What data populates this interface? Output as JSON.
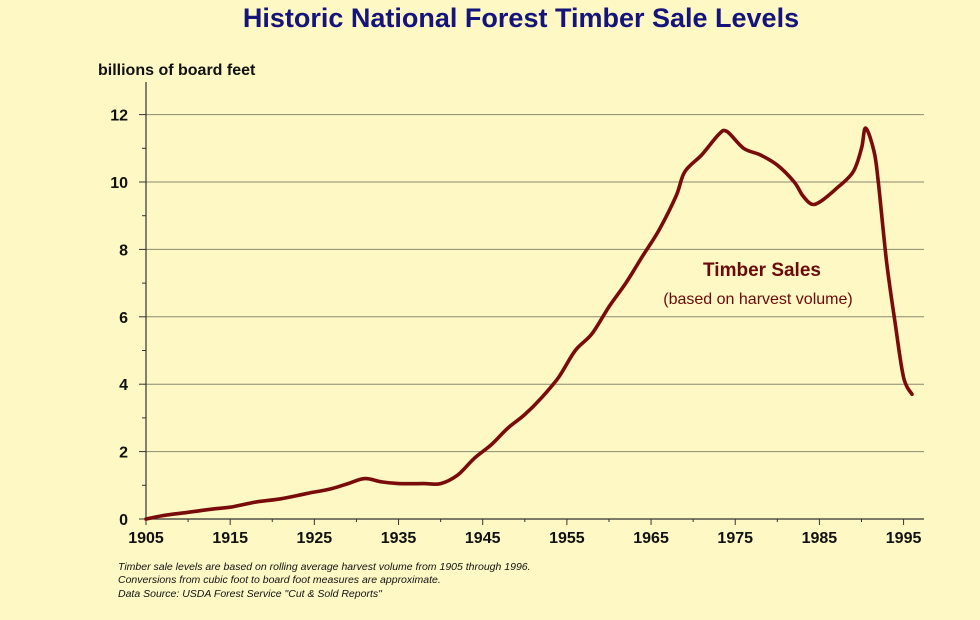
{
  "chart_data": {
    "type": "line",
    "title": "Historic National Forest Timber Sale Levels",
    "ylabel": "billions of board feet",
    "xlabel": "",
    "xlim": [
      1905,
      1996
    ],
    "ylim": [
      0,
      13
    ],
    "x_ticks": [
      "1905",
      "1915",
      "1925",
      "1935",
      "1945",
      "1955",
      "1965",
      "1975",
      "1985",
      "1995"
    ],
    "y_ticks": [
      "0",
      "2",
      "4",
      "6",
      "8",
      "10",
      "12"
    ],
    "grid": true,
    "series": [
      {
        "name": "Timber Sales",
        "color": "#7a0b0b",
        "points": [
          [
            1905,
            0.0
          ],
          [
            1907,
            0.1
          ],
          [
            1910,
            0.2
          ],
          [
            1913,
            0.3
          ],
          [
            1915,
            0.35
          ],
          [
            1918,
            0.5
          ],
          [
            1921,
            0.6
          ],
          [
            1924,
            0.75
          ],
          [
            1927,
            0.9
          ],
          [
            1929,
            1.05
          ],
          [
            1931,
            1.2
          ],
          [
            1933,
            1.1
          ],
          [
            1935,
            1.05
          ],
          [
            1938,
            1.05
          ],
          [
            1940,
            1.05
          ],
          [
            1942,
            1.3
          ],
          [
            1944,
            1.8
          ],
          [
            1946,
            2.2
          ],
          [
            1948,
            2.7
          ],
          [
            1950,
            3.1
          ],
          [
            1952,
            3.6
          ],
          [
            1954,
            4.2
          ],
          [
            1956,
            5.0
          ],
          [
            1958,
            5.5
          ],
          [
            1960,
            6.3
          ],
          [
            1962,
            7.0
          ],
          [
            1964,
            7.8
          ],
          [
            1966,
            8.6
          ],
          [
            1968,
            9.6
          ],
          [
            1969,
            10.3
          ],
          [
            1971,
            10.8
          ],
          [
            1973,
            11.4
          ],
          [
            1974,
            11.5
          ],
          [
            1976,
            11.0
          ],
          [
            1978,
            10.8
          ],
          [
            1980,
            10.5
          ],
          [
            1982,
            10.0
          ],
          [
            1983,
            9.6
          ],
          [
            1984,
            9.35
          ],
          [
            1985,
            9.4
          ],
          [
            1987,
            9.8
          ],
          [
            1989,
            10.3
          ],
          [
            1990,
            11.0
          ],
          [
            1990.5,
            11.6
          ],
          [
            1991.5,
            10.9
          ],
          [
            1992,
            10.0
          ],
          [
            1993,
            7.6
          ],
          [
            1994,
            5.8
          ],
          [
            1995,
            4.2
          ],
          [
            1996,
            3.7
          ]
        ]
      }
    ],
    "annotation": {
      "title": "Timber Sales",
      "subtitle": "(based on harvest volume)"
    },
    "notes": [
      "Timber sale levels are based on rolling average harvest volume from 1905 through 1996.",
      "Conversions from cubic foot to board foot measures are approximate.",
      "Data Source:  USDA Forest Service \"Cut & Sold Reports\""
    ]
  }
}
